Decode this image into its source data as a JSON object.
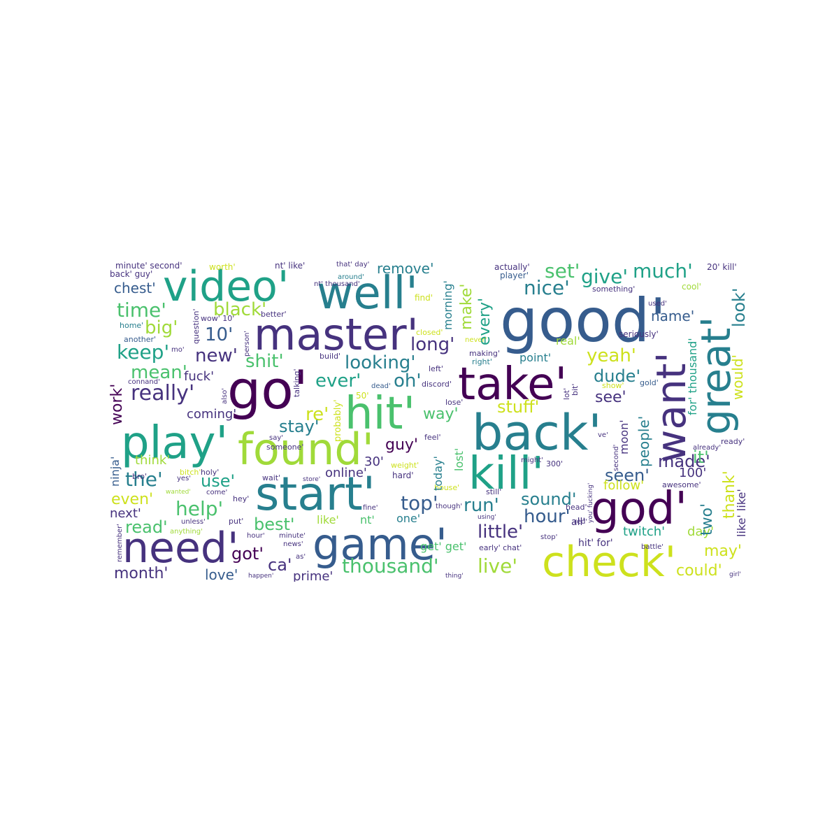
{
  "palette": {
    "c1": "#440154",
    "c2": "#46327e",
    "c3": "#365c8d",
    "c4": "#277f8e",
    "c5": "#1fa187",
    "c6": "#4ac16d",
    "c7": "#a0da39",
    "c8": "#cde11d",
    "c9": "#fde725"
  },
  "words": [
    {
      "text": "good'",
      "color": "#365c8d",
      "orient": "h"
    },
    {
      "text": "well'",
      "color": "#277f8e",
      "orient": "h"
    },
    {
      "text": "video'",
      "color": "#1fa187",
      "orient": "h"
    },
    {
      "text": "master'",
      "color": "#46327e",
      "orient": "h"
    },
    {
      "text": "go'",
      "color": "#440154",
      "orient": "h"
    },
    {
      "text": "take'",
      "color": "#440154",
      "orient": "h"
    },
    {
      "text": "hit'",
      "color": "#4ac16d",
      "orient": "h"
    },
    {
      "text": "play'",
      "color": "#1fa187",
      "orient": "h"
    },
    {
      "text": "found'",
      "color": "#a0da39",
      "orient": "h"
    },
    {
      "text": "back'",
      "color": "#277f8e",
      "orient": "h"
    },
    {
      "text": "kill'",
      "color": "#1fa187",
      "orient": "h"
    },
    {
      "text": "start'",
      "color": "#277f8e",
      "orient": "h"
    },
    {
      "text": "god'",
      "color": "#440154",
      "orient": "h"
    },
    {
      "text": "need'",
      "color": "#46327e",
      "orient": "h"
    },
    {
      "text": "game'",
      "color": "#365c8d",
      "orient": "h"
    },
    {
      "text": "check'",
      "color": "#cde11d",
      "orient": "h"
    },
    {
      "text": "want'",
      "color": "#46327e",
      "orient": "v"
    },
    {
      "text": "great'",
      "color": "#277f8e",
      "orient": "v"
    },
    {
      "text": "time'",
      "color": "#4ac16d",
      "orient": "h"
    },
    {
      "text": "black'",
      "color": "#a0da39",
      "orient": "h"
    },
    {
      "text": "big'",
      "color": "#a0da39",
      "orient": "h"
    },
    {
      "text": "10'",
      "color": "#365c8d",
      "orient": "h"
    },
    {
      "text": "keep'",
      "color": "#1fa187",
      "orient": "h"
    },
    {
      "text": "new'",
      "color": "#46327e",
      "orient": "h"
    },
    {
      "text": "shit'",
      "color": "#4ac16d",
      "orient": "h"
    },
    {
      "text": "looking'",
      "color": "#277f8e",
      "orient": "h"
    },
    {
      "text": "mean'",
      "color": "#4ac16d",
      "orient": "h"
    },
    {
      "text": "really'",
      "color": "#46327e",
      "orient": "h"
    },
    {
      "text": "ever'",
      "color": "#1fa187",
      "orient": "h"
    },
    {
      "text": "oh'",
      "color": "#277f8e",
      "orient": "h"
    },
    {
      "text": "long'",
      "color": "#46327e",
      "orient": "h"
    },
    {
      "text": "remove'",
      "color": "#277f8e",
      "orient": "h"
    },
    {
      "text": "set'",
      "color": "#4ac16d",
      "orient": "h"
    },
    {
      "text": "give'",
      "color": "#1fa187",
      "orient": "h"
    },
    {
      "text": "much'",
      "color": "#1fa187",
      "orient": "h"
    },
    {
      "text": "nice'",
      "color": "#277f8e",
      "orient": "h"
    },
    {
      "text": "chest'",
      "color": "#365c8d",
      "orient": "h"
    },
    {
      "text": "name'",
      "color": "#365c8d",
      "orient": "h"
    },
    {
      "text": "yeah'",
      "color": "#cde11d",
      "orient": "h"
    },
    {
      "text": "dude'",
      "color": "#277f8e",
      "orient": "h"
    },
    {
      "text": "see'",
      "color": "#46327e",
      "orient": "h"
    },
    {
      "text": "stuff'",
      "color": "#cde11d",
      "orient": "h"
    },
    {
      "text": "point'",
      "color": "#277f8e",
      "orient": "h"
    },
    {
      "text": "real'",
      "color": "#a0da39",
      "orient": "h"
    },
    {
      "text": "fuck'",
      "color": "#46327e",
      "orient": "h"
    },
    {
      "text": "coming'",
      "color": "#46327e",
      "orient": "h"
    },
    {
      "text": "re'",
      "color": "#cde11d",
      "orient": "h"
    },
    {
      "text": "way'",
      "color": "#4ac16d",
      "orient": "h"
    },
    {
      "text": "stay'",
      "color": "#277f8e",
      "orient": "h"
    },
    {
      "text": "guy'",
      "color": "#440154",
      "orient": "h"
    },
    {
      "text": "think'",
      "color": "#a0da39",
      "orient": "h"
    },
    {
      "text": "the'",
      "color": "#277f8e",
      "orient": "h"
    },
    {
      "text": "use'",
      "color": "#1fa187",
      "orient": "h"
    },
    {
      "text": "online'",
      "color": "#46327e",
      "orient": "h"
    },
    {
      "text": "30'",
      "color": "#46327e",
      "orient": "h"
    },
    {
      "text": "seen'",
      "color": "#365c8d",
      "orient": "h"
    },
    {
      "text": "made'",
      "color": "#46327e",
      "orient": "h"
    },
    {
      "text": "follow'",
      "color": "#cde11d",
      "orient": "h"
    },
    {
      "text": "even'",
      "color": "#cde11d",
      "orient": "h"
    },
    {
      "text": "help'",
      "color": "#4ac16d",
      "orient": "h"
    },
    {
      "text": "top'",
      "color": "#365c8d",
      "orient": "h"
    },
    {
      "text": "run'",
      "color": "#277f8e",
      "orient": "h"
    },
    {
      "text": "sound'",
      "color": "#277f8e",
      "orient": "h"
    },
    {
      "text": "hour'",
      "color": "#365c8d",
      "orient": "h"
    },
    {
      "text": "next'",
      "color": "#46327e",
      "orient": "h"
    },
    {
      "text": "read'",
      "color": "#4ac16d",
      "orient": "h"
    },
    {
      "text": "best'",
      "color": "#4ac16d",
      "orient": "h"
    },
    {
      "text": "little'",
      "color": "#46327e",
      "orient": "h"
    },
    {
      "text": "like'",
      "color": "#a0da39",
      "orient": "h"
    },
    {
      "text": "nt'",
      "color": "#4ac16d",
      "orient": "h"
    },
    {
      "text": "one'",
      "color": "#277f8e",
      "orient": "h"
    },
    {
      "text": "got'",
      "color": "#440154",
      "orient": "h"
    },
    {
      "text": "ca'",
      "color": "#46327e",
      "orient": "h"
    },
    {
      "text": "month'",
      "color": "#46327e",
      "orient": "h"
    },
    {
      "text": "love'",
      "color": "#365c8d",
      "orient": "h"
    },
    {
      "text": "prime'",
      "color": "#46327e",
      "orient": "h"
    },
    {
      "text": "thousand'",
      "color": "#4ac16d",
      "orient": "h"
    },
    {
      "text": "live'",
      "color": "#a0da39",
      "orient": "h"
    },
    {
      "text": "may'",
      "color": "#cde11d",
      "orient": "h"
    },
    {
      "text": "could'",
      "color": "#cde11d",
      "orient": "h"
    },
    {
      "text": "twitch'",
      "color": "#1fa187",
      "orient": "h"
    },
    {
      "text": "day'",
      "color": "#a0da39",
      "orient": "h"
    },
    {
      "text": "it'",
      "color": "#4ac16d",
      "orient": "h"
    },
    {
      "text": "100'",
      "color": "#46327e",
      "orient": "h"
    },
    {
      "text": "all'",
      "color": "#46327e",
      "orient": "h"
    },
    {
      "text": "hit' for'",
      "color": "#46327e",
      "orient": "h"
    },
    {
      "text": "get' get'",
      "color": "#4ac16d",
      "orient": "h"
    },
    {
      "text": "20' kill'",
      "color": "#46327e",
      "orient": "h"
    },
    {
      "text": "minute' second'",
      "color": "#46327e",
      "orient": "h"
    },
    {
      "text": "back' guy'",
      "color": "#46327e",
      "orient": "h"
    },
    {
      "text": "worth'",
      "color": "#cde11d",
      "orient": "h"
    },
    {
      "text": "nt' like'",
      "color": "#46327e",
      "orient": "h"
    },
    {
      "text": "that' day'",
      "color": "#46327e",
      "orient": "h"
    },
    {
      "text": "around'",
      "color": "#277f8e",
      "orient": "h"
    },
    {
      "text": "nt' thousand'",
      "color": "#46327e",
      "orient": "h"
    },
    {
      "text": "actually'",
      "color": "#46327e",
      "orient": "h"
    },
    {
      "text": "player'",
      "color": "#365c8d",
      "orient": "h"
    },
    {
      "text": "something'",
      "color": "#46327e",
      "orient": "h"
    },
    {
      "text": "cool'",
      "color": "#a0da39",
      "orient": "h"
    },
    {
      "text": "used'",
      "color": "#46327e",
      "orient": "h"
    },
    {
      "text": "find'",
      "color": "#cde11d",
      "orient": "h"
    },
    {
      "text": "home'",
      "color": "#277f8e",
      "orient": "h"
    },
    {
      "text": "another'",
      "color": "#365c8d",
      "orient": "h"
    },
    {
      "text": "wow' 10'",
      "color": "#46327e",
      "orient": "h"
    },
    {
      "text": "better'",
      "color": "#46327e",
      "orient": "h"
    },
    {
      "text": "mo'",
      "color": "#46327e",
      "orient": "h"
    },
    {
      "text": "build'",
      "color": "#46327e",
      "orient": "h"
    },
    {
      "text": "closed'",
      "color": "#cde11d",
      "orient": "h"
    },
    {
      "text": "never'",
      "color": "#cde11d",
      "orient": "h"
    },
    {
      "text": "seriously'",
      "color": "#46327e",
      "orient": "h"
    },
    {
      "text": "making'",
      "color": "#46327e",
      "orient": "h"
    },
    {
      "text": "right'",
      "color": "#277f8e",
      "orient": "h"
    },
    {
      "text": "left'",
      "color": "#46327e",
      "orient": "h"
    },
    {
      "text": "discord'",
      "color": "#46327e",
      "orient": "h"
    },
    {
      "text": "connand'",
      "color": "#46327e",
      "orient": "h"
    },
    {
      "text": "dead'",
      "color": "#365c8d",
      "orient": "h"
    },
    {
      "text": "lose'",
      "color": "#46327e",
      "orient": "h"
    },
    {
      "text": "50'",
      "color": "#cde11d",
      "orient": "h"
    },
    {
      "text": "say'",
      "color": "#46327e",
      "orient": "h"
    },
    {
      "text": "someone'",
      "color": "#46327e",
      "orient": "h"
    },
    {
      "text": "feel'",
      "color": "#46327e",
      "orient": "h"
    },
    {
      "text": "show'",
      "color": "#cde11d",
      "orient": "h"
    },
    {
      "text": "gold'",
      "color": "#365c8d",
      "orient": "h"
    },
    {
      "text": "ve'",
      "color": "#46327e",
      "orient": "h"
    },
    {
      "text": "already'",
      "color": "#46327e",
      "orient": "h"
    },
    {
      "text": "ready'",
      "color": "#46327e",
      "orient": "h"
    },
    {
      "text": "bro'",
      "color": "#46327e",
      "orient": "h"
    },
    {
      "text": "bitch'",
      "color": "#cde11d",
      "orient": "h"
    },
    {
      "text": "holy'",
      "color": "#46327e",
      "orient": "h"
    },
    {
      "text": "yes'",
      "color": "#46327e",
      "orient": "h"
    },
    {
      "text": "weight'",
      "color": "#cde11d",
      "orient": "h"
    },
    {
      "text": "wait'",
      "color": "#46327e",
      "orient": "h"
    },
    {
      "text": "store'",
      "color": "#46327e",
      "orient": "h"
    },
    {
      "text": "hard'",
      "color": "#46327e",
      "orient": "h"
    },
    {
      "text": "300'",
      "color": "#46327e",
      "orient": "h"
    },
    {
      "text": "awesome'",
      "color": "#46327e",
      "orient": "h"
    },
    {
      "text": "wanted'",
      "color": "#a0da39",
      "orient": "h"
    },
    {
      "text": "come'",
      "color": "#46327e",
      "orient": "h"
    },
    {
      "text": "hey'",
      "color": "#46327e",
      "orient": "h"
    },
    {
      "text": "unless'",
      "color": "#46327e",
      "orient": "h"
    },
    {
      "text": "anything'",
      "color": "#a0da39",
      "orient": "h"
    },
    {
      "text": "put'",
      "color": "#46327e",
      "orient": "h"
    },
    {
      "text": "hour'",
      "color": "#46327e",
      "orient": "h"
    },
    {
      "text": "minute'",
      "color": "#46327e",
      "orient": "h"
    },
    {
      "text": "news'",
      "color": "#46327e",
      "orient": "h"
    },
    {
      "text": "as'",
      "color": "#46327e",
      "orient": "h"
    },
    {
      "text": "happen'",
      "color": "#46327e",
      "orient": "h"
    },
    {
      "text": "fine'",
      "color": "#46327e",
      "orient": "h"
    },
    {
      "text": "early' chat'",
      "color": "#46327e",
      "orient": "h"
    },
    {
      "text": "stop'",
      "color": "#46327e",
      "orient": "h"
    },
    {
      "text": "head'",
      "color": "#46327e",
      "orient": "h"
    },
    {
      "text": "battle'",
      "color": "#46327e",
      "orient": "h"
    },
    {
      "text": "girl'",
      "color": "#46327e",
      "orient": "h"
    },
    {
      "text": "thing'",
      "color": "#46327e",
      "orient": "h"
    },
    {
      "text": "house'",
      "color": "#cde11d",
      "orient": "h"
    },
    {
      "text": "though'",
      "color": "#46327e",
      "orient": "h"
    },
    {
      "text": "still'",
      "color": "#46327e",
      "orient": "h"
    },
    {
      "text": "using'",
      "color": "#46327e",
      "orient": "h"
    },
    {
      "text": "might'",
      "color": "#46327e",
      "orient": "h"
    },
    {
      "text": "red'",
      "color": "#46327e",
      "orient": "h"
    },
    {
      "text": "make'",
      "color": "#a0da39",
      "orient": "v"
    },
    {
      "text": "every'",
      "color": "#1fa187",
      "orient": "v"
    },
    {
      "text": "morning'",
      "color": "#277f8e",
      "orient": "v"
    },
    {
      "text": "look'",
      "color": "#277f8e",
      "orient": "v"
    },
    {
      "text": "would'",
      "color": "#cde11d",
      "orient": "v"
    },
    {
      "text": "for' thousand'",
      "color": "#1fa187",
      "orient": "v"
    },
    {
      "text": "like' like'",
      "color": "#46327e",
      "orient": "v"
    },
    {
      "text": "thank'",
      "color": "#cde11d",
      "orient": "v"
    },
    {
      "text": "two'",
      "color": "#277f8e",
      "orient": "v"
    },
    {
      "text": "people'",
      "color": "#277f8e",
      "orient": "v"
    },
    {
      "text": "moon'",
      "color": "#46327e",
      "orient": "v"
    },
    {
      "text": "work'",
      "color": "#440154",
      "orient": "v"
    },
    {
      "text": "ninja'",
      "color": "#365c8d",
      "orient": "v"
    },
    {
      "text": "today'",
      "color": "#277f8e",
      "orient": "v"
    },
    {
      "text": "lost'",
      "color": "#4ac16d",
      "orient": "v"
    },
    {
      "text": "probably'",
      "color": "#cde11d",
      "orient": "v"
    },
    {
      "text": "talking'",
      "color": "#46327e",
      "orient": "v"
    },
    {
      "text": "question'",
      "color": "#46327e",
      "orient": "v"
    },
    {
      "text": "person'",
      "color": "#46327e",
      "orient": "v"
    },
    {
      "text": "also'",
      "color": "#46327e",
      "orient": "v"
    },
    {
      "text": "second'",
      "color": "#46327e",
      "orient": "v"
    },
    {
      "text": "remember'",
      "color": "#46327e",
      "orient": "v"
    },
    {
      "text": "you' fucking'",
      "color": "#46327e",
      "orient": "v"
    },
    {
      "text": "lot'",
      "color": "#46327e",
      "orient": "v"
    },
    {
      "text": "bit'",
      "color": "#46327e",
      "orient": "v"
    }
  ]
}
